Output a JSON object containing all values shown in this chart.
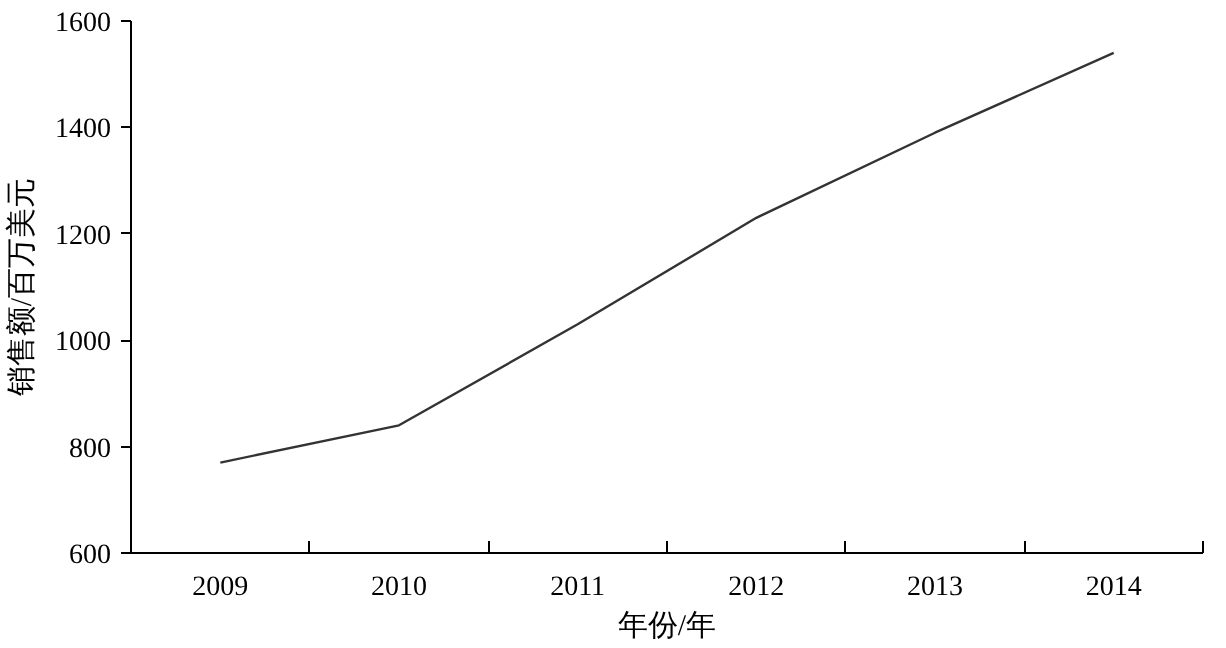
{
  "chart_data": {
    "type": "line",
    "xlabel": "年份/年",
    "ylabel": "销售额/百万美元",
    "categories": [
      "2009",
      "2010",
      "2011",
      "2012",
      "2013",
      "2014"
    ],
    "series": [
      {
        "color": "#333333",
        "values": [
          770,
          840,
          1030,
          1230,
          1390,
          1540
        ]
      }
    ],
    "ylim": [
      600,
      1600
    ],
    "yticks": [
      600,
      800,
      1000,
      1200,
      1400,
      1600
    ],
    "grid": false,
    "marker": "none",
    "line_style": "solid"
  }
}
